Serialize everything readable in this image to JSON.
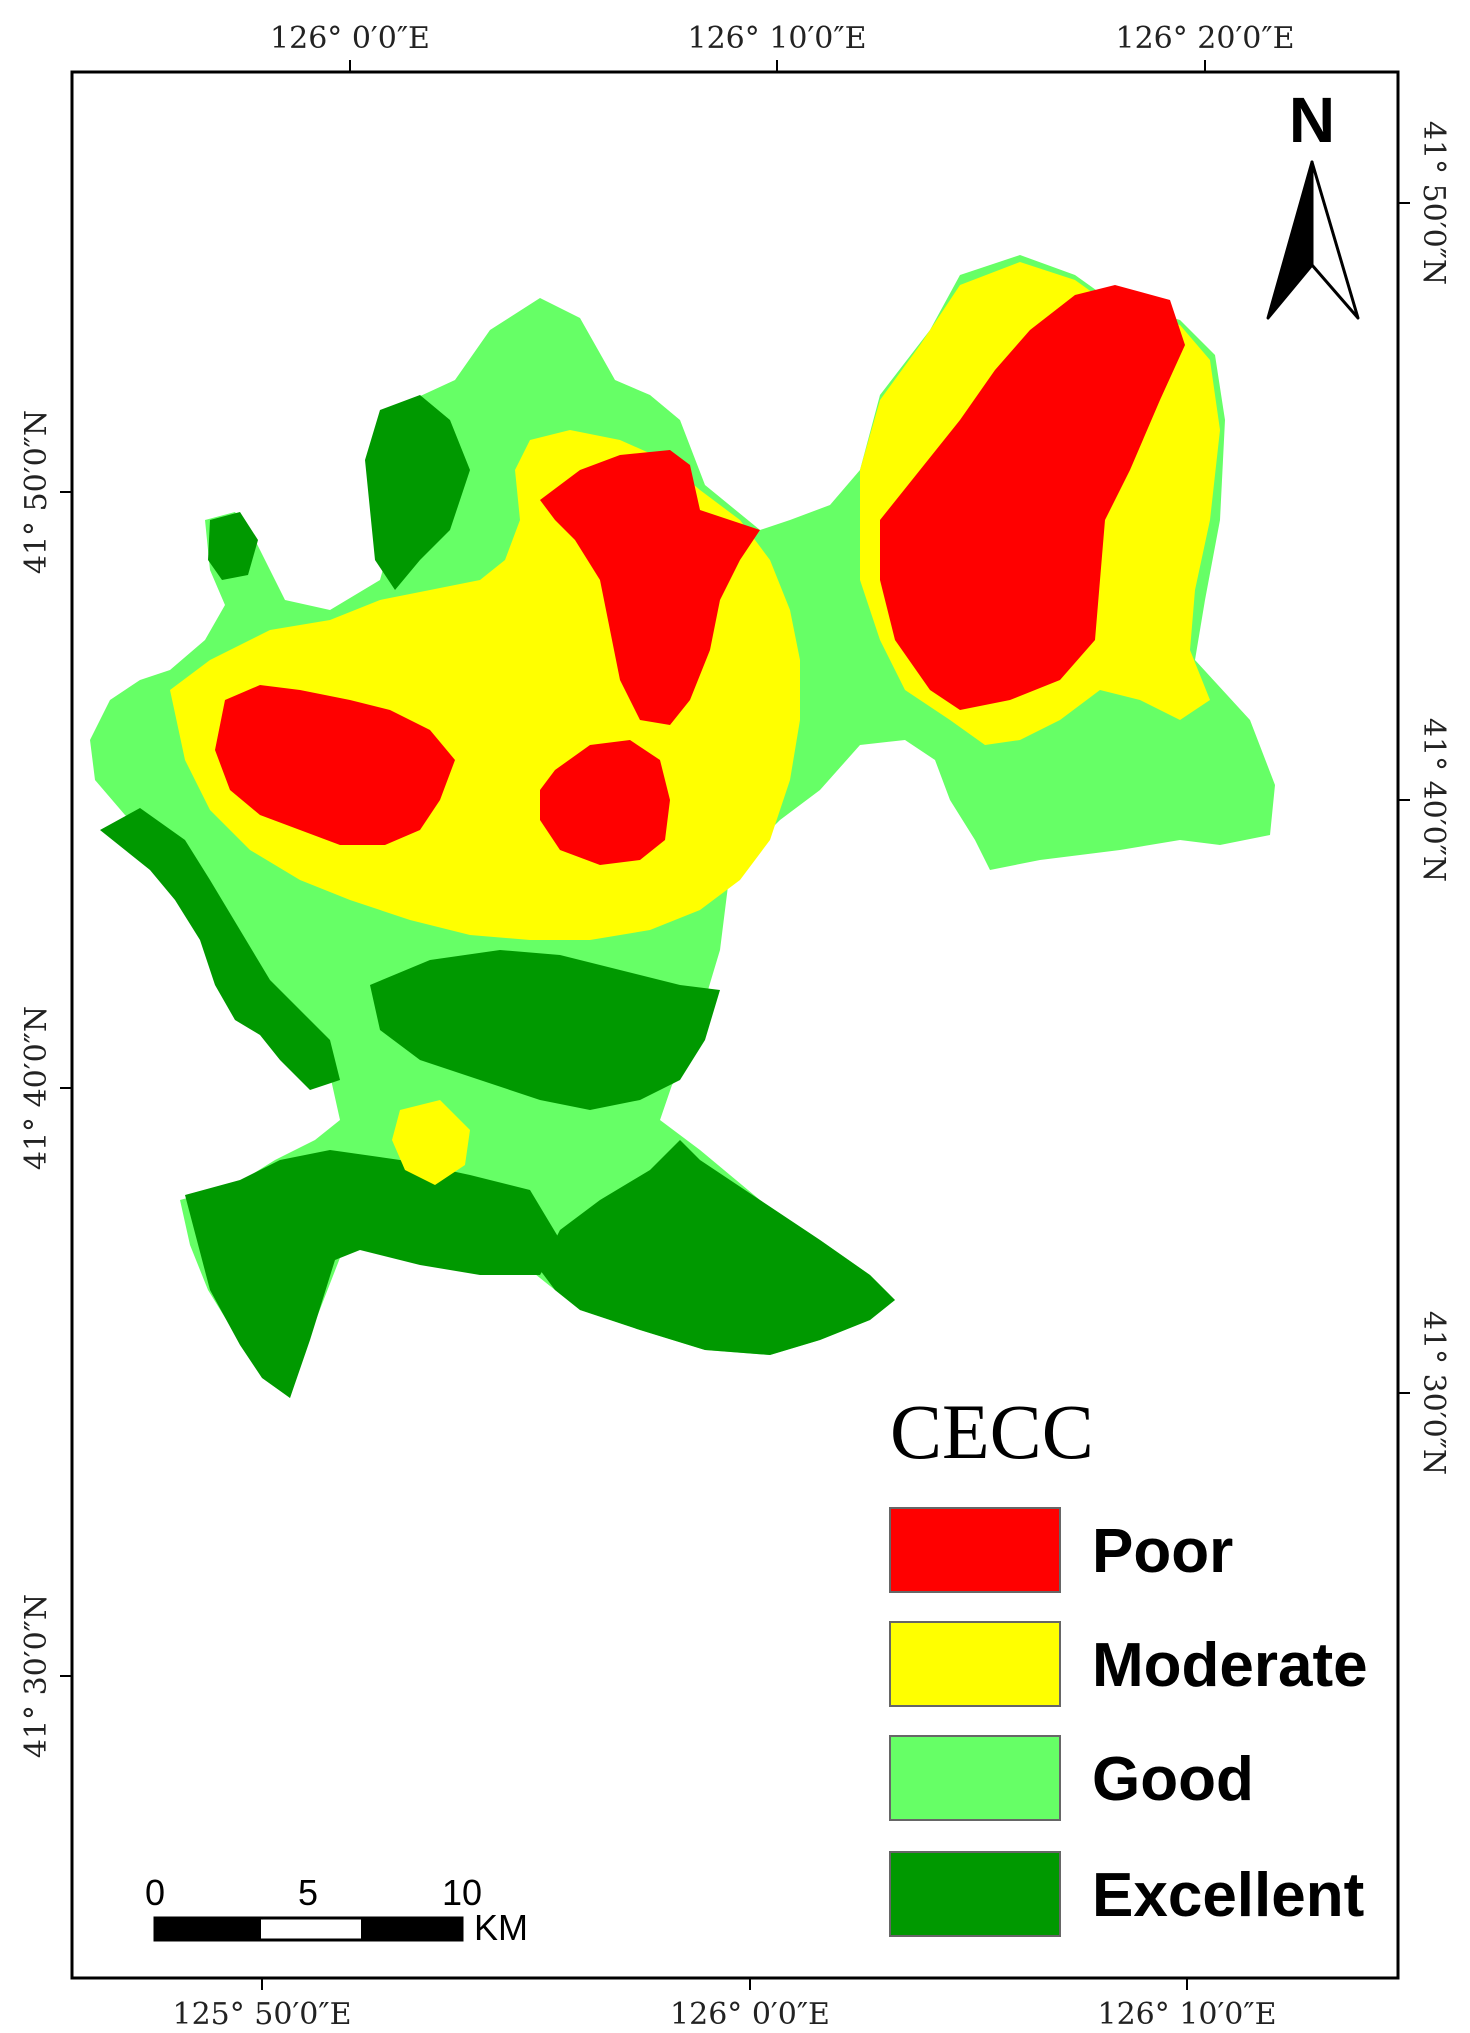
{
  "map": {
    "top_lon_labels": [
      "126° 0′0″E",
      "126° 10′0″E",
      "126° 20′0″E"
    ],
    "bottom_lon_labels": [
      "125° 50′0″E",
      "126° 0′0″E",
      "126° 10′0″E"
    ],
    "left_lat_labels": [
      "41° 50′0″N",
      "41° 40′0″N",
      "41° 30′0″N"
    ],
    "right_lat_labels": [
      "41° 50′0″N",
      "41° 40′0″N",
      "41° 30′0″N"
    ],
    "north_arrow": {
      "label": "N",
      "icon": "north-arrow-icon"
    },
    "scale_bar": {
      "ticks": [
        "0",
        "5",
        "10"
      ],
      "unit": "KM"
    },
    "legend": {
      "title": "CECC",
      "items": [
        {
          "label": "Poor",
          "color": "#ff0000"
        },
        {
          "label": "Moderate",
          "color": "#ffff00"
        },
        {
          "label": "Good",
          "color": "#66ff66"
        },
        {
          "label": "Excellent",
          "color": "#009900"
        }
      ]
    }
  }
}
